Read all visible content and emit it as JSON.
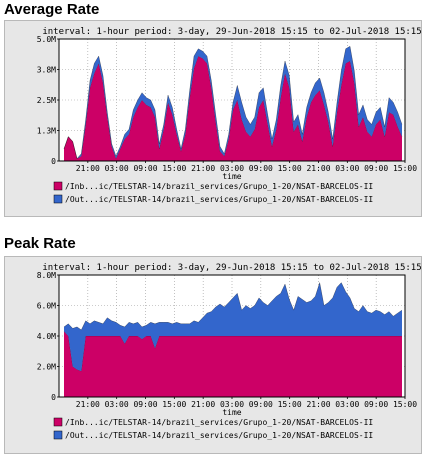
{
  "charts": [
    {
      "title": "Average Rate",
      "chart_data": {
        "type": "area",
        "info": "interval: 1-hour  period: 3-day, 29-Jun-2018 15:15 to 02-Jul-2018 15:15",
        "xlabel": "time",
        "x_ticks": [
          "21:00",
          "03:00",
          "09:00",
          "15:00",
          "21:00",
          "03:00",
          "09:00",
          "15:00",
          "21:00",
          "03:00",
          "09:00",
          "15:00"
        ],
        "y_ticks": [
          "0",
          "1.3M",
          "2.5M",
          "3.8M",
          "5.0M"
        ],
        "ylim": [
          0,
          5.0
        ],
        "y_unit": "M",
        "stacked": true,
        "series": [
          {
            "name": "/Inb...ic/TELSTAR-14/brazil_services/Grupo_1-20/NSAT-BARCELOS-II",
            "color": "#cc0066",
            "values": [
              0.5,
              1.0,
              0.8,
              0.1,
              0.2,
              1.5,
              3.0,
              3.6,
              4.0,
              3.2,
              1.8,
              0.6,
              0.1,
              0.5,
              0.9,
              1.1,
              1.8,
              2.2,
              2.5,
              2.3,
              2.2,
              1.8,
              0.5,
              1.3,
              2.4,
              1.9,
              1.1,
              0.4,
              1.1,
              2.6,
              3.8,
              4.3,
              4.2,
              4.0,
              3.0,
              1.6,
              0.4,
              0.2,
              0.9,
              2.1,
              2.5,
              1.7,
              1.2,
              1.0,
              1.3,
              2.2,
              2.5,
              1.5,
              0.6,
              1.3,
              2.6,
              3.6,
              3.0,
              1.2,
              1.5,
              0.8,
              1.8,
              2.4,
              2.7,
              2.9,
              2.3,
              1.6,
              0.6,
              2.0,
              3.1,
              4.0,
              4.1,
              3.2,
              1.4,
              1.8,
              1.2,
              1.0,
              1.5,
              1.7,
              1.0,
              2.0,
              1.9,
              1.4,
              1.0
            ]
          },
          {
            "name": "/Out...ic/TELSTAR-14/brazil_services/Grupo_1-20/NSAT-BARCELOS-II",
            "color": "#3366cc",
            "values": [
              0.0,
              0.0,
              0.0,
              0.0,
              0.1,
              0.2,
              0.3,
              0.4,
              0.3,
              0.3,
              0.2,
              0.1,
              0.1,
              0.1,
              0.2,
              0.2,
              0.3,
              0.3,
              0.3,
              0.3,
              0.3,
              0.3,
              0.2,
              0.2,
              0.3,
              0.3,
              0.2,
              0.1,
              0.2,
              0.3,
              0.5,
              0.3,
              0.3,
              0.3,
              0.3,
              0.3,
              0.2,
              0.1,
              0.2,
              0.3,
              0.6,
              0.7,
              0.6,
              0.5,
              0.5,
              0.6,
              0.5,
              0.4,
              0.3,
              0.4,
              0.5,
              0.5,
              0.5,
              0.4,
              0.4,
              0.3,
              0.4,
              0.4,
              0.5,
              0.5,
              0.5,
              0.4,
              0.3,
              0.4,
              0.6,
              0.6,
              0.6,
              0.5,
              0.5,
              0.5,
              0.5,
              0.5,
              0.5,
              0.5,
              0.4,
              0.6,
              0.5,
              0.6,
              0.5
            ]
          }
        ]
      }
    },
    {
      "title": "Peak Rate",
      "chart_data": {
        "type": "area",
        "info": "interval: 1-hour  period: 3-day, 29-Jun-2018 15:15 to 02-Jul-2018 15:15",
        "xlabel": "time",
        "x_ticks": [
          "21:00",
          "03:00",
          "09:00",
          "15:00",
          "21:00",
          "03:00",
          "09:00",
          "15:00",
          "21:00",
          "03:00",
          "09:00",
          "15:00"
        ],
        "y_ticks": [
          "0",
          "2.0M",
          "4.0M",
          "6.0M",
          "8.0M"
        ],
        "ylim": [
          0,
          8.0
        ],
        "y_unit": "M",
        "stacked": true,
        "series": [
          {
            "name": "/Inb...ic/TELSTAR-14/brazil_services/Grupo_1-20/NSAT-BARCELOS-II",
            "color": "#cc0066",
            "values": [
              4.3,
              4.0,
              2.0,
              1.8,
              1.7,
              4.0,
              4.0,
              4.0,
              4.0,
              4.0,
              4.0,
              4.0,
              4.0,
              4.0,
              3.5,
              4.0,
              4.0,
              4.0,
              3.8,
              4.0,
              4.0,
              3.2,
              4.0,
              4.0,
              4.0,
              4.0,
              4.0,
              4.0,
              4.0,
              4.0,
              4.0,
              4.0,
              4.0,
              4.0,
              4.0,
              4.0,
              4.0,
              4.0,
              4.0,
              4.0,
              4.0,
              4.0,
              4.0,
              4.0,
              4.0,
              4.0,
              4.0,
              4.0,
              4.0,
              4.0,
              4.0,
              4.0,
              4.0,
              4.0,
              4.0,
              4.0,
              4.0,
              4.0,
              4.0,
              4.0,
              4.0,
              4.0,
              4.0,
              4.0,
              4.0,
              4.0,
              4.0,
              4.0,
              4.0,
              4.0,
              4.0,
              4.0,
              4.0,
              4.0,
              4.0,
              4.0,
              4.0,
              4.0,
              4.0
            ]
          },
          {
            "name": "/Out...ic/TELSTAR-14/brazil_services/Grupo_1-20/NSAT-BARCELOS-II",
            "color": "#3366cc",
            "values": [
              0.3,
              0.8,
              2.5,
              2.8,
              2.7,
              1.0,
              0.8,
              1.0,
              0.9,
              0.8,
              1.2,
              1.0,
              0.9,
              0.7,
              1.1,
              0.9,
              0.8,
              0.9,
              0.8,
              0.7,
              0.9,
              1.6,
              0.9,
              0.9,
              0.9,
              0.8,
              0.9,
              0.8,
              0.8,
              0.8,
              1.0,
              0.9,
              1.2,
              1.5,
              1.6,
              1.9,
              2.1,
              1.9,
              2.2,
              2.5,
              2.8,
              1.7,
              2.0,
              1.8,
              2.0,
              2.5,
              2.2,
              2.0,
              2.3,
              2.6,
              2.8,
              3.4,
              2.4,
              1.7,
              2.6,
              2.4,
              2.2,
              2.3,
              2.6,
              3.5,
              2.0,
              2.2,
              2.5,
              3.2,
              3.5,
              2.9,
              2.5,
              1.8,
              1.6,
              2.0,
              1.6,
              1.5,
              1.7,
              1.6,
              1.4,
              1.6,
              1.3,
              1.5,
              1.7
            ]
          }
        ]
      }
    }
  ]
}
